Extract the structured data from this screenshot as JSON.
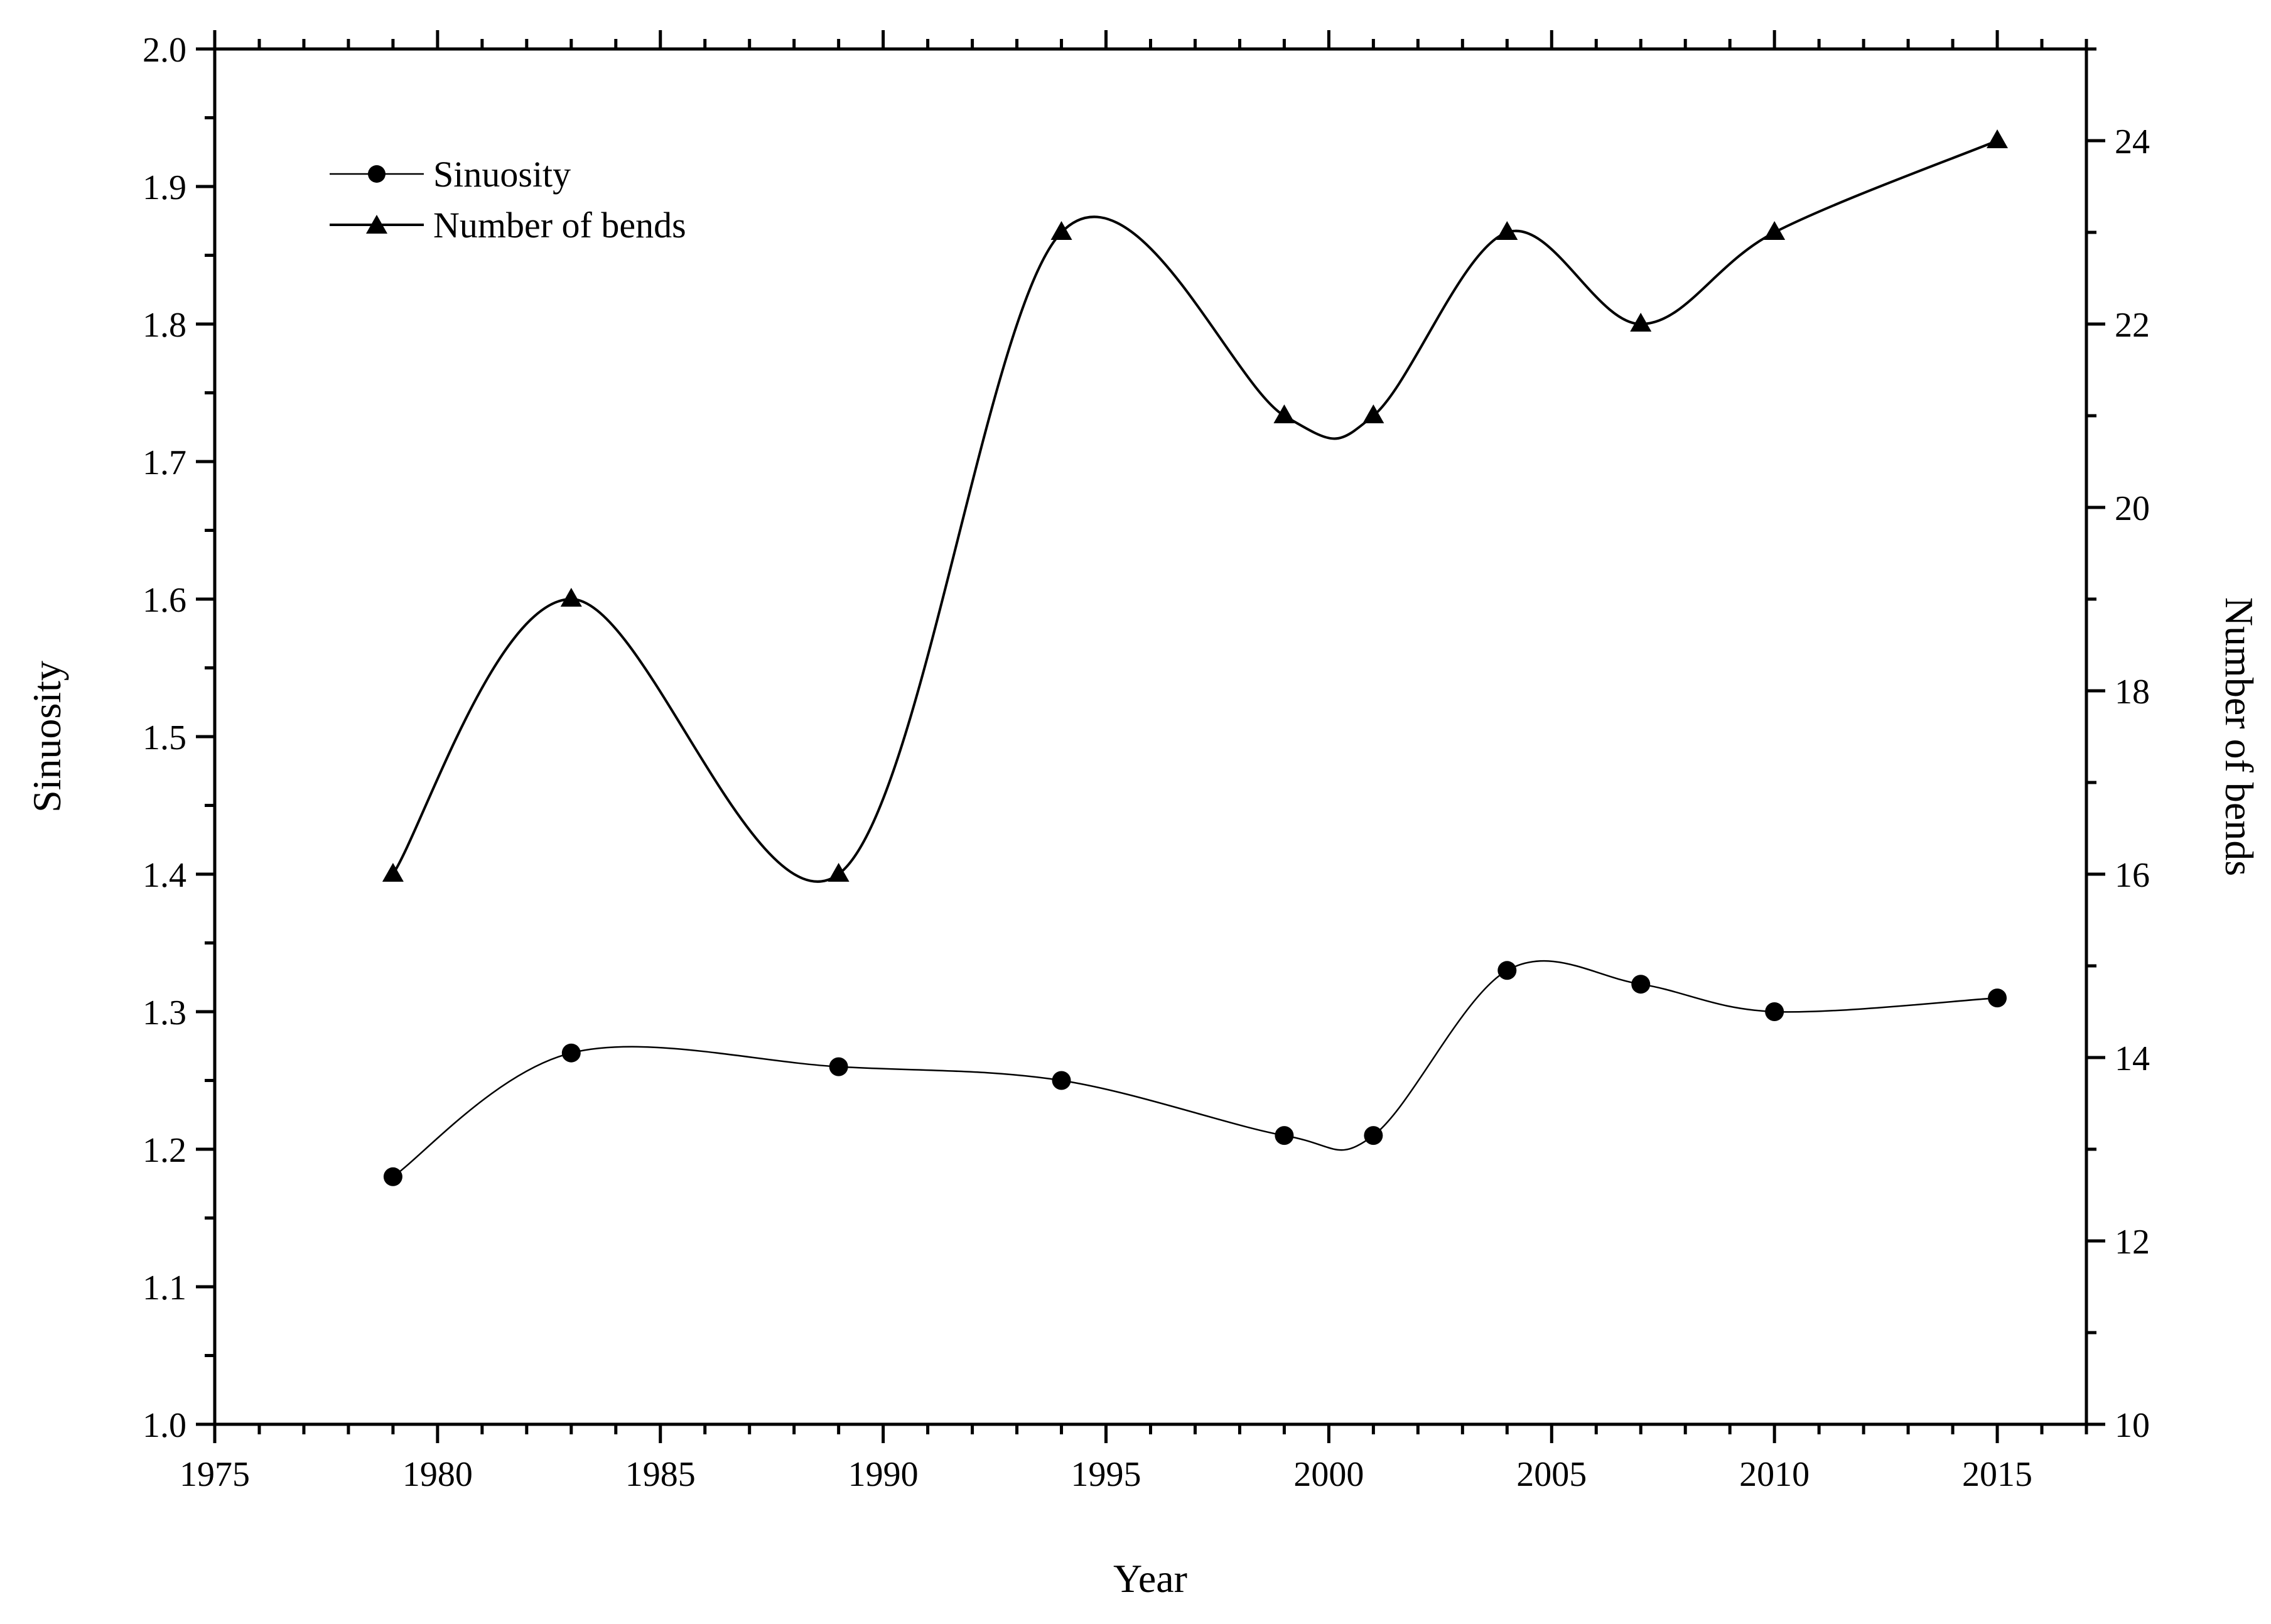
{
  "chart_data": {
    "type": "line",
    "title": "",
    "xlabel": "Year",
    "ylabel": "Sinuosity",
    "y2label": "Number of bends",
    "xlim": [
      1975,
      2017
    ],
    "ylim": [
      1.0,
      2.0
    ],
    "y2lim": [
      10,
      25
    ],
    "x_ticks": [
      "1975",
      "1980",
      "1985",
      "1990",
      "1995",
      "2000",
      "2005",
      "2010",
      "2015"
    ],
    "y_ticks": [
      "1.0",
      "1.1",
      "1.2",
      "1.3",
      "1.4",
      "1.5",
      "1.6",
      "1.7",
      "1.8",
      "1.9",
      "2.0"
    ],
    "y2_ticks": [
      "10",
      "12",
      "14",
      "16",
      "18",
      "20",
      "22",
      "24"
    ],
    "x": [
      1979,
      1983,
      1989,
      1994,
      1999,
      2001,
      2004,
      2007,
      2010,
      2015
    ],
    "series": [
      {
        "name": "Sinuosity",
        "axis": "left",
        "marker": "circle",
        "values": [
          1.18,
          1.27,
          1.26,
          1.25,
          1.21,
          1.21,
          1.33,
          1.32,
          1.3,
          1.31
        ]
      },
      {
        "name": "Number of bends",
        "axis": "right",
        "marker": "triangle",
        "values": [
          16,
          19,
          16,
          23,
          21,
          21,
          23,
          22,
          23,
          24
        ]
      }
    ],
    "grid": false,
    "legend_position": "top-left",
    "colors": {
      "line": "#000000",
      "marker": "#000000"
    }
  }
}
